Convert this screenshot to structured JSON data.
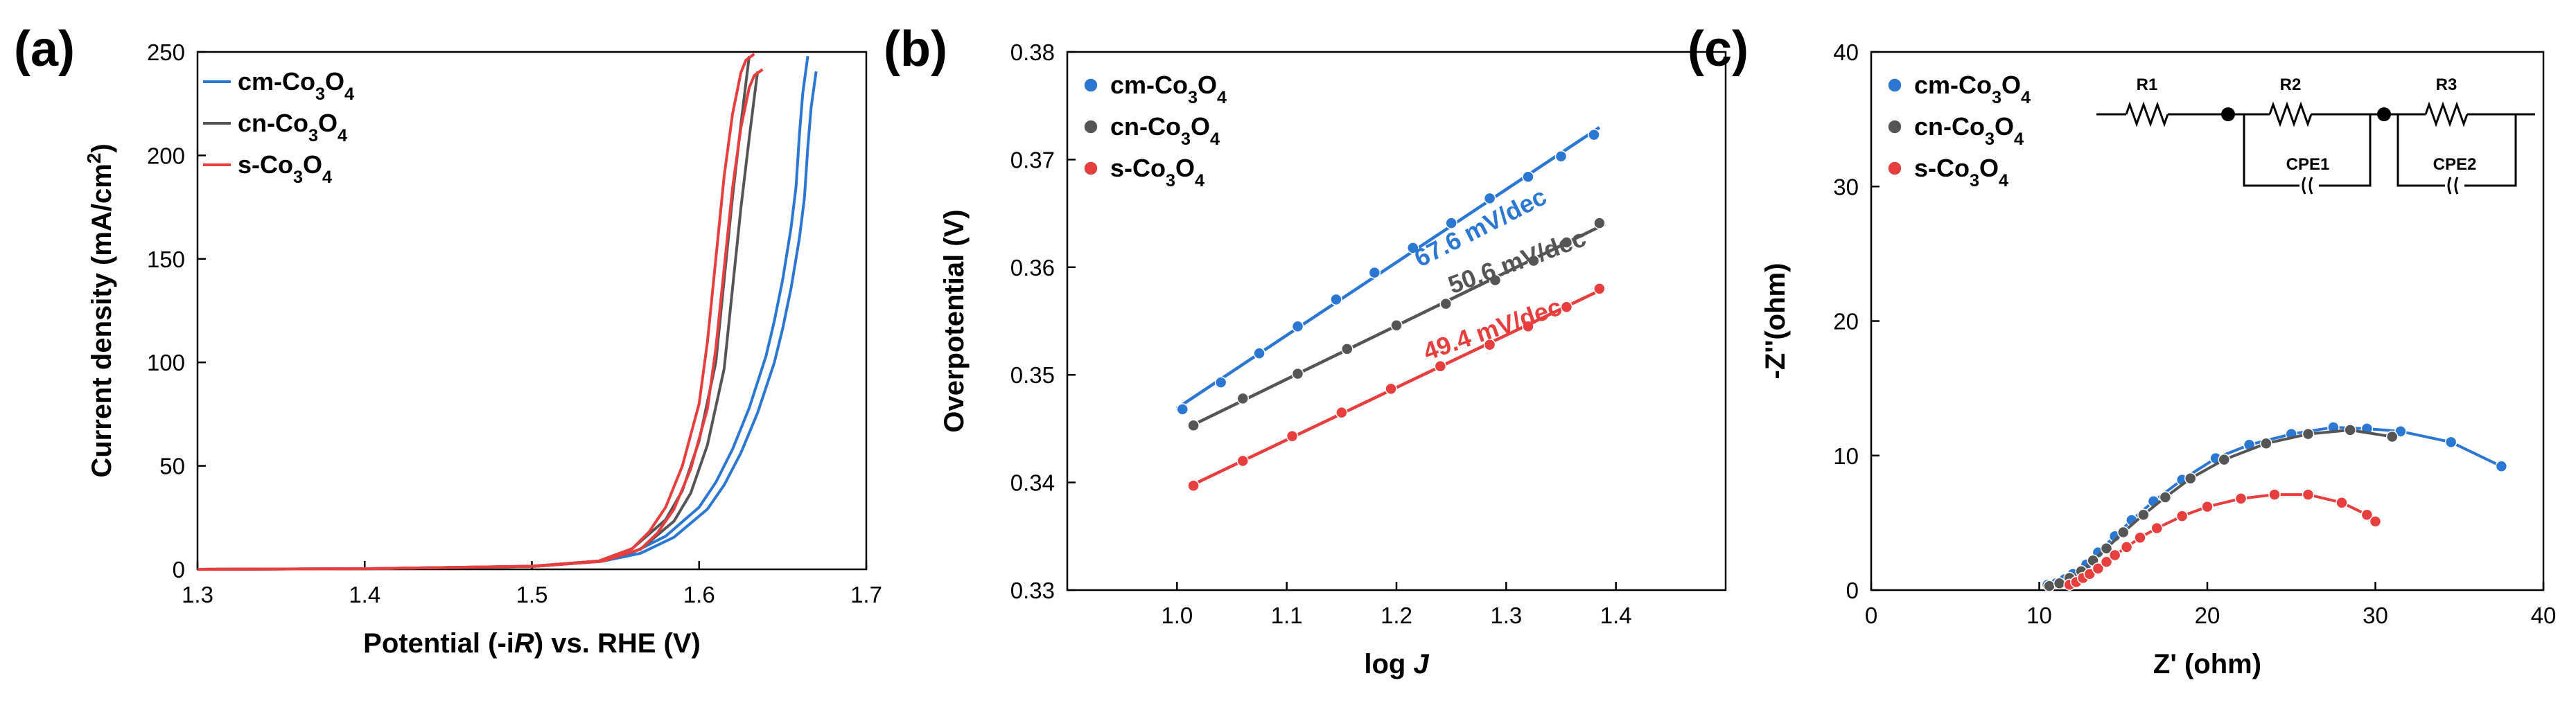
{
  "colors": {
    "cm": "#2a78d4",
    "cn": "#555555",
    "s": "#e83e3e",
    "axis": "#000000"
  },
  "chart_data": [
    {
      "id": "a",
      "type": "line",
      "panel_label": "(a)",
      "title": "",
      "xlabel": "Potential (-iR) vs. RHE (V)",
      "ylabel": "Current density (mA/cm²)",
      "xlim": [
        1.3,
        1.7
      ],
      "ylim": [
        0,
        250
      ],
      "xticks": [
        "1.3",
        "1.4",
        "1.5",
        "1.6",
        "1.7"
      ],
      "yticks": [
        "0",
        "50",
        "100",
        "150",
        "200",
        "250"
      ],
      "legend": [
        "cm-Co₃O₄",
        "cn-Co₃O₄",
        "s-Co₃O₄"
      ],
      "series": [
        {
          "name": "cm-Co₃O₄",
          "key": "cm",
          "x": [
            1.3,
            1.4,
            1.5,
            1.54,
            1.56,
            1.58,
            1.6,
            1.61,
            1.62,
            1.63,
            1.64,
            1.645,
            1.65,
            1.655,
            1.658,
            1.66,
            1.662,
            1.665
          ],
          "y": [
            0,
            0.3,
            1.5,
            4,
            8,
            16,
            30,
            42,
            58,
            78,
            103,
            120,
            140,
            165,
            185,
            210,
            230,
            248
          ]
        },
        {
          "name": "cn-Co₃O₄",
          "key": "cn",
          "x": [
            1.3,
            1.4,
            1.5,
            1.54,
            1.56,
            1.58,
            1.59,
            1.6,
            1.61,
            1.615,
            1.62,
            1.625,
            1.628,
            1.63
          ],
          "y": [
            0,
            0.3,
            1.5,
            4,
            10,
            24,
            38,
            62,
            100,
            140,
            180,
            215,
            235,
            248
          ]
        },
        {
          "name": "s-Co₃O₄",
          "key": "s",
          "x": [
            1.3,
            1.4,
            1.5,
            1.54,
            1.56,
            1.57,
            1.58,
            1.59,
            1.6,
            1.605,
            1.61,
            1.615,
            1.62,
            1.625,
            1.628,
            1.633
          ],
          "y": [
            0,
            0.3,
            1.5,
            4,
            10,
            18,
            30,
            50,
            80,
            110,
            150,
            190,
            220,
            240,
            246,
            249
          ]
        }
      ]
    },
    {
      "id": "b",
      "type": "scatter",
      "panel_label": "(b)",
      "title": "",
      "xlabel": "log J",
      "ylabel": "Overpotential (V)",
      "xlim": [
        0.9,
        1.5
      ],
      "ylim": [
        0.33,
        0.38
      ],
      "xticks": [
        "1.0",
        "1.1",
        "1.2",
        "1.3",
        "1.4"
      ],
      "yticks": [
        "0.33",
        "0.34",
        "0.35",
        "0.36",
        "0.37",
        "0.38"
      ],
      "legend": [
        "cm-Co₃O₄",
        "cn-Co₃O₄",
        "s-Co₃O₄"
      ],
      "series": [
        {
          "name": "cm-Co₃O₄",
          "key": "cm",
          "slope_label": "67.6 mV/dec",
          "x": [
            1.005,
            1.04,
            1.075,
            1.11,
            1.145,
            1.18,
            1.215,
            1.25,
            1.285,
            1.32,
            1.35,
            1.38
          ],
          "y": [
            0.3468,
            0.3493,
            0.352,
            0.3545,
            0.357,
            0.3595,
            0.3618,
            0.3641,
            0.3664,
            0.3684,
            0.3703,
            0.3723
          ]
        },
        {
          "name": "cn-Co₃O₄",
          "key": "cn",
          "slope_label": "50.6 mV/dec",
          "x": [
            1.015,
            1.06,
            1.11,
            1.155,
            1.2,
            1.245,
            1.29,
            1.325,
            1.355,
            1.385
          ],
          "y": [
            0.3453,
            0.3478,
            0.3501,
            0.3524,
            0.3546,
            0.3566,
            0.3588,
            0.3606,
            0.3623,
            0.3641
          ]
        },
        {
          "name": "s-Co₃O₄",
          "key": "s",
          "slope_label": "49.4 mV/dec",
          "x": [
            1.015,
            1.06,
            1.105,
            1.15,
            1.195,
            1.24,
            1.285,
            1.32,
            1.355,
            1.385
          ],
          "y": [
            0.3397,
            0.342,
            0.3443,
            0.3465,
            0.3487,
            0.3508,
            0.3528,
            0.3545,
            0.3563,
            0.358
          ]
        }
      ]
    },
    {
      "id": "c",
      "type": "scatter",
      "panel_label": "(c)",
      "title": "",
      "xlabel": "Z' (ohm)",
      "ylabel": "-Z''(ohm)",
      "xlim": [
        0,
        40
      ],
      "ylim": [
        0,
        40
      ],
      "xticks": [
        "0",
        "10",
        "20",
        "30",
        "40"
      ],
      "yticks": [
        "0",
        "10",
        "20",
        "30",
        "40"
      ],
      "legend": [
        "cm-Co₃O₄",
        "cn-Co₃O₄",
        "s-Co₃O₄"
      ],
      "circuit_labels": [
        "R1",
        "R2",
        "R3",
        "CPE1",
        "CPE2"
      ],
      "series": [
        {
          "name": "cm-Co₃O₄",
          "key": "cm",
          "x": [
            10.5,
            11.0,
            11.5,
            12.0,
            12.8,
            13.5,
            14.5,
            15.5,
            16.8,
            18.5,
            20.5,
            22.5,
            25.0,
            27.5,
            29.5,
            31.5,
            34.5,
            37.5
          ],
          "y": [
            0.4,
            0.5,
            0.8,
            1.2,
            1.9,
            2.8,
            4.0,
            5.2,
            6.6,
            8.2,
            9.8,
            10.8,
            11.6,
            12.1,
            12.0,
            11.8,
            11.0,
            9.2
          ]
        },
        {
          "name": "cn-Co₃O₄",
          "key": "cn",
          "x": [
            10.6,
            11.2,
            11.8,
            12.5,
            13.2,
            14.0,
            15.0,
            16.2,
            17.5,
            19.0,
            21.0,
            23.5,
            26.0,
            28.5,
            31.0
          ],
          "y": [
            0.3,
            0.5,
            0.9,
            1.4,
            2.2,
            3.1,
            4.3,
            5.6,
            6.9,
            8.3,
            9.7,
            10.9,
            11.6,
            11.9,
            11.4
          ]
        },
        {
          "name": "s-Co₃O₄",
          "key": "s",
          "x": [
            11.8,
            12.2,
            12.6,
            13.0,
            13.5,
            14.0,
            14.5,
            15.2,
            16.0,
            17.0,
            18.5,
            20.0,
            22.0,
            24.0,
            26.0,
            28.0,
            29.5,
            30.0
          ],
          "y": [
            0.4,
            0.6,
            0.9,
            1.2,
            1.6,
            2.1,
            2.6,
            3.2,
            3.9,
            4.6,
            5.5,
            6.2,
            6.8,
            7.1,
            7.1,
            6.5,
            5.6,
            5.1
          ]
        }
      ]
    }
  ]
}
